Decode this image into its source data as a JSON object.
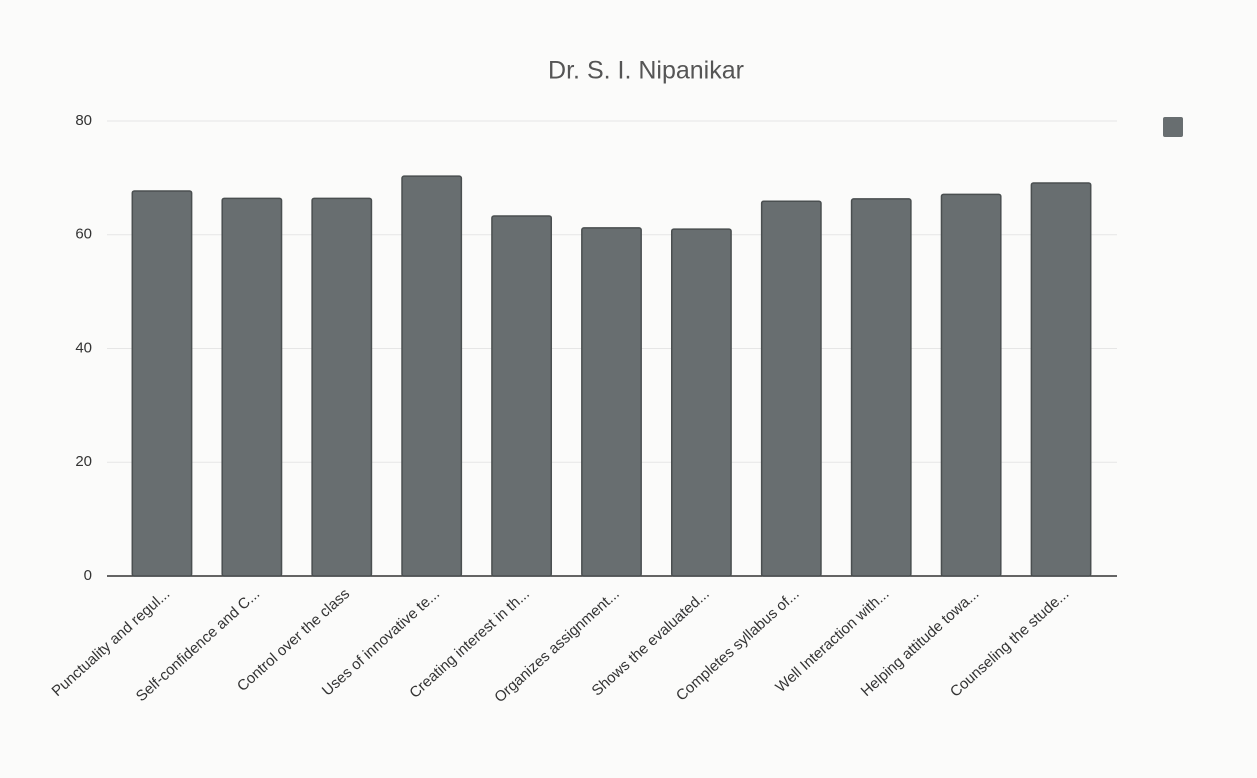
{
  "chart_data": {
    "type": "bar",
    "title": "Dr. S. I. Nipanikar",
    "categories": [
      "Punctuality and regul...",
      "Self-confidence and C...",
      "Control over the class",
      "Uses of innovative te...",
      "Creating interest in th...",
      "Organizes assignment...",
      "Shows the evaluated...",
      "Completes syllabus of...",
      "Well Interaction with...",
      "Helping attitude towa...",
      "Counseling the stude..."
    ],
    "values": [
      67.7,
      66.4,
      66.4,
      70.3,
      63.3,
      61.2,
      61.0,
      65.9,
      66.3,
      67.1,
      69.1
    ],
    "color": "#686e70",
    "ylim": [
      0,
      80
    ],
    "yticks": [
      0,
      20,
      40,
      60,
      80
    ],
    "grid": true
  }
}
